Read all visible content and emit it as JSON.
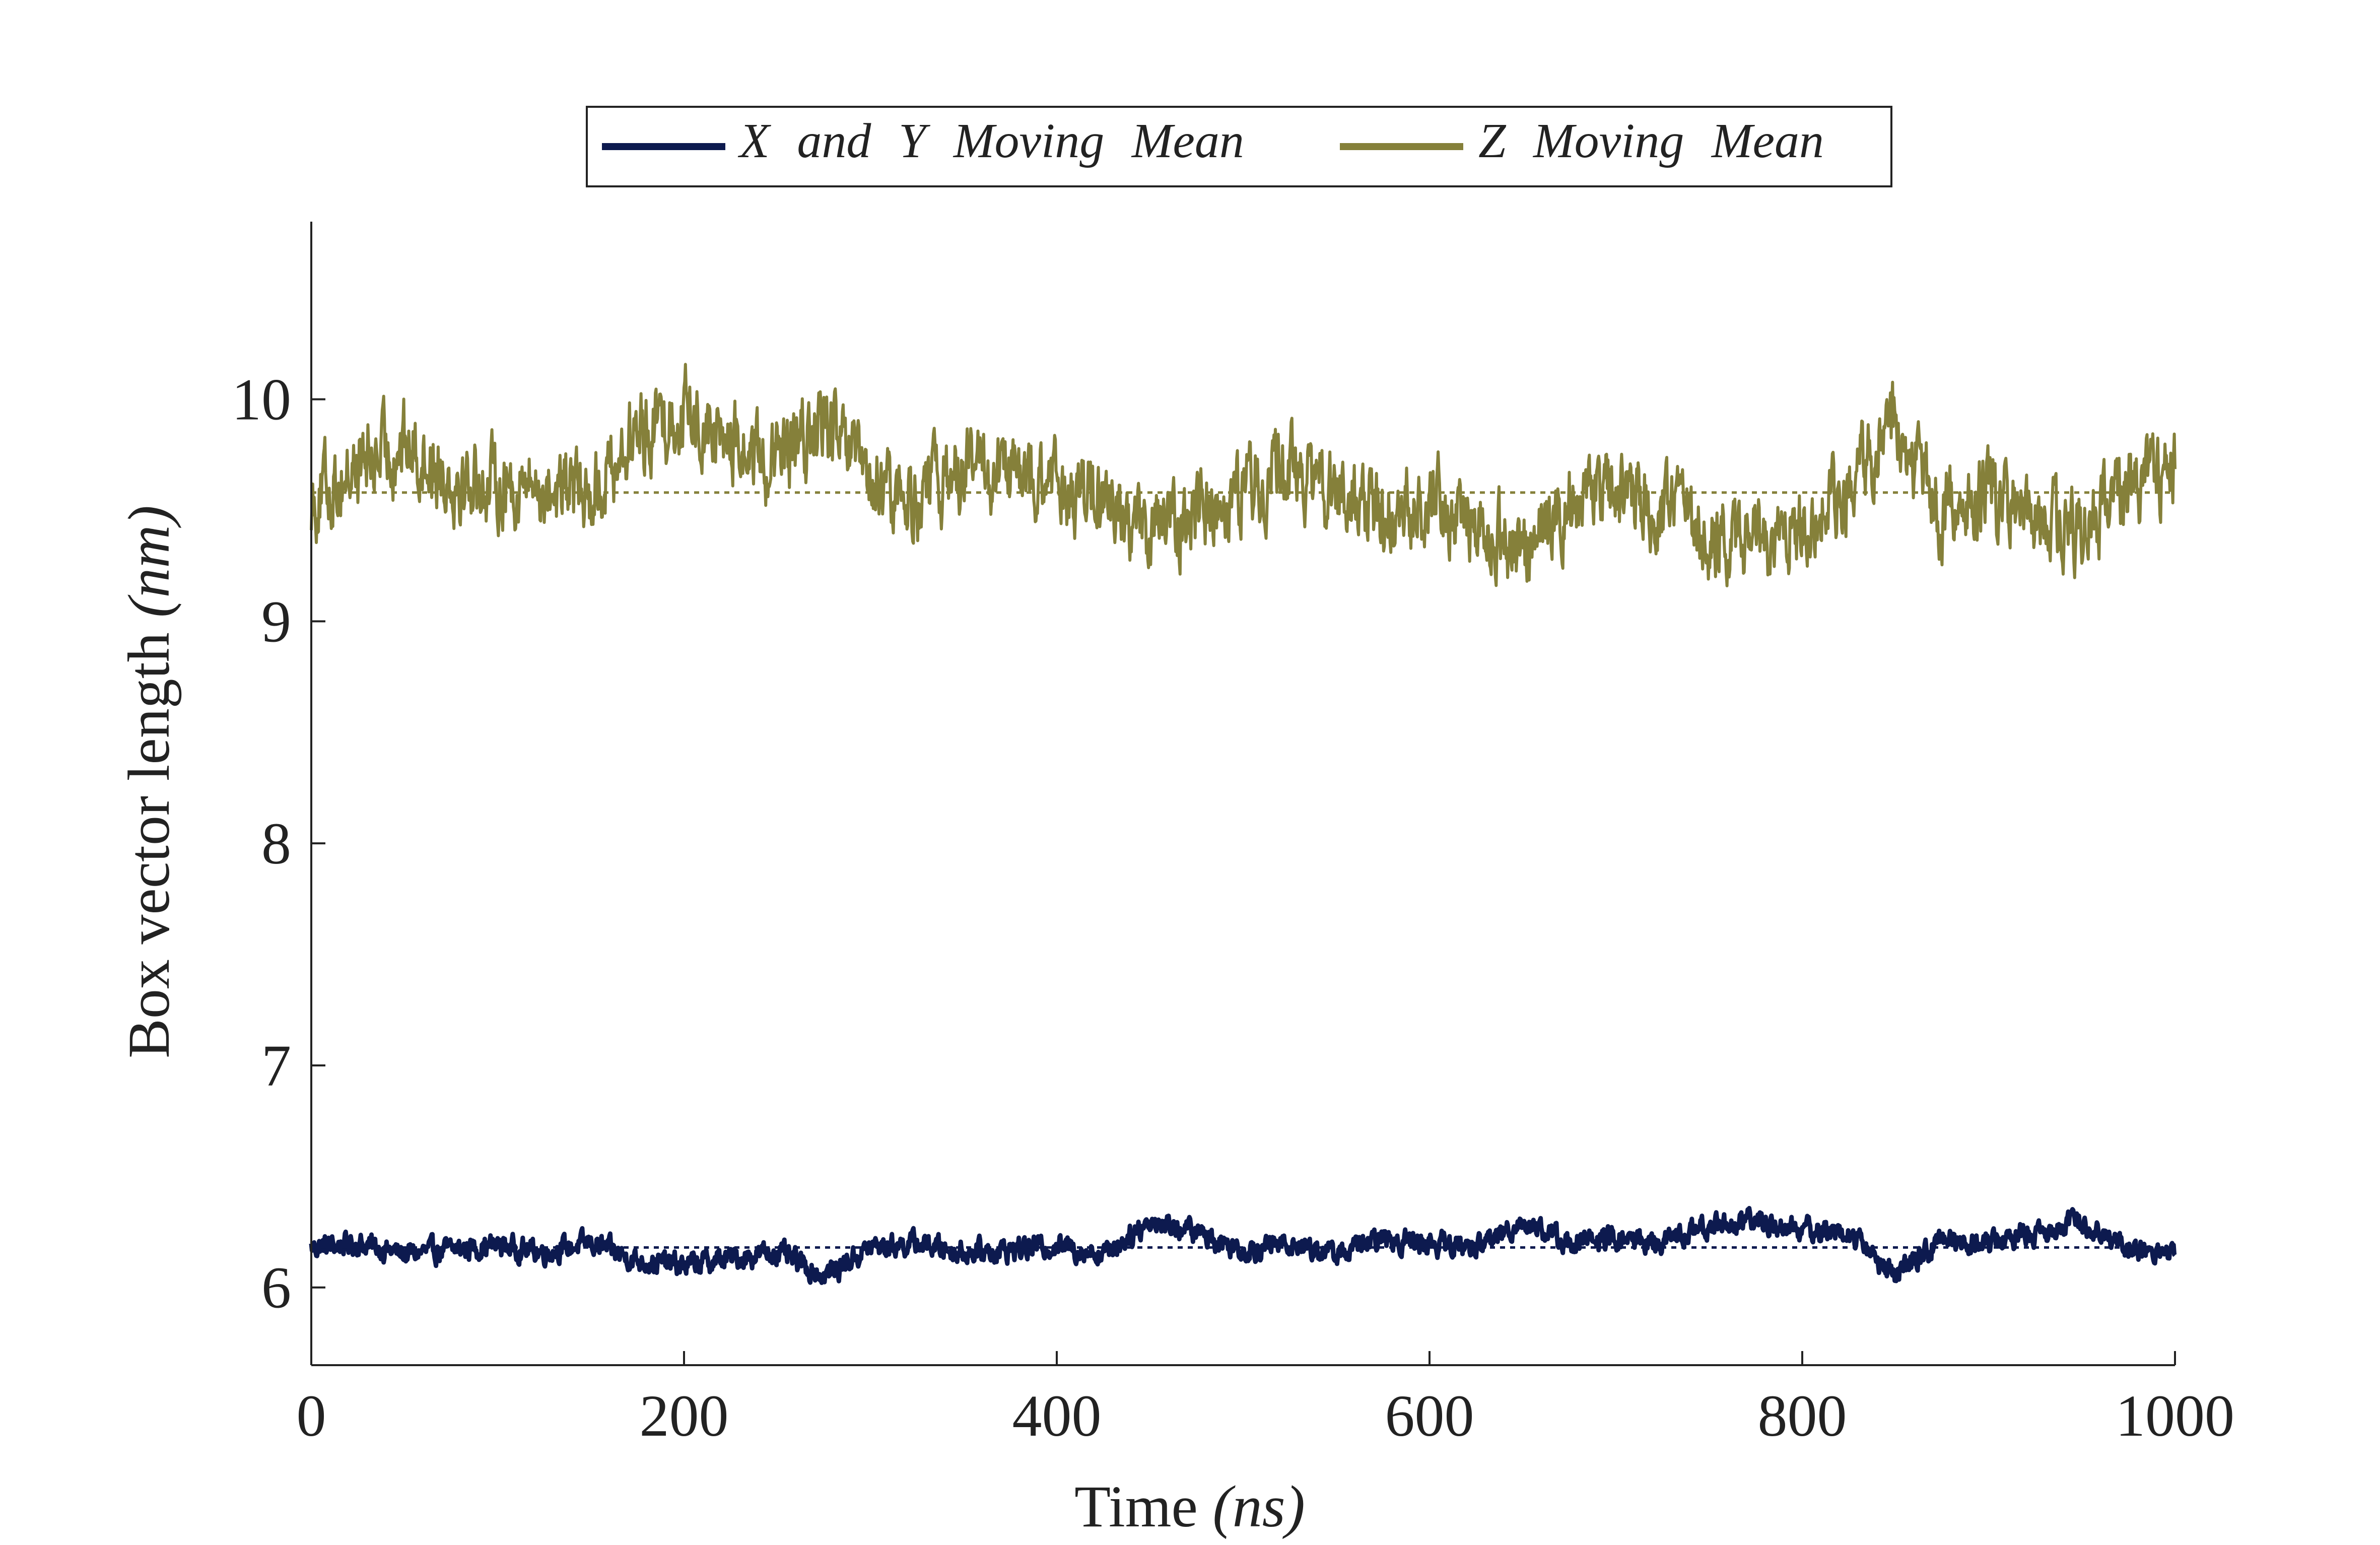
{
  "chart_data": {
    "type": "line",
    "xlabel_main": "Time",
    "xlabel_unit": "(ns)",
    "ylabel_main": "Box vector length",
    "ylabel_unit": "(nm)",
    "xlim": [
      0,
      1000
    ],
    "ylim": [
      5.65,
      10.8
    ],
    "xticks": [
      0,
      200,
      400,
      600,
      800,
      1000
    ],
    "yticks": [
      6,
      7,
      8,
      9,
      10
    ],
    "grid": false,
    "legend_position": "top-center",
    "series": [
      {
        "name": "X and Y Moving Mean",
        "color": "#0d1a4f",
        "mean": 6.18,
        "x": [
          0,
          25,
          50,
          75,
          100,
          125,
          150,
          175,
          200,
          225,
          250,
          275,
          300,
          325,
          350,
          375,
          400,
          425,
          450,
          475,
          500,
          525,
          550,
          575,
          600,
          625,
          650,
          675,
          700,
          725,
          750,
          775,
          800,
          825,
          850,
          875,
          900,
          925,
          950,
          975,
          1000
        ],
        "values": [
          6.18,
          6.2,
          6.15,
          6.17,
          6.19,
          6.16,
          6.2,
          6.12,
          6.1,
          6.13,
          6.16,
          6.05,
          6.18,
          6.2,
          6.16,
          6.17,
          6.19,
          6.15,
          6.3,
          6.25,
          6.17,
          6.2,
          6.15,
          6.22,
          6.2,
          6.18,
          6.3,
          6.2,
          6.22,
          6.2,
          6.28,
          6.3,
          6.26,
          6.25,
          6.05,
          6.22,
          6.2,
          6.25,
          6.3,
          6.18,
          6.15
        ]
      },
      {
        "name": "Z Moving Mean",
        "color": "#85803a",
        "mean": 9.58,
        "x": [
          0,
          25,
          50,
          75,
          100,
          125,
          150,
          175,
          200,
          225,
          250,
          275,
          300,
          325,
          350,
          375,
          400,
          425,
          450,
          475,
          500,
          525,
          550,
          575,
          600,
          625,
          650,
          675,
          700,
          725,
          750,
          775,
          800,
          825,
          850,
          875,
          900,
          925,
          950,
          975,
          1000
        ],
        "values": [
          9.55,
          9.7,
          9.8,
          9.65,
          9.62,
          9.6,
          9.58,
          9.85,
          9.95,
          9.8,
          9.7,
          9.9,
          9.6,
          9.55,
          9.7,
          9.65,
          9.6,
          9.55,
          9.4,
          9.5,
          9.6,
          9.7,
          9.55,
          9.5,
          9.55,
          9.45,
          9.3,
          9.55,
          9.6,
          9.5,
          9.4,
          9.35,
          9.45,
          9.6,
          9.9,
          9.5,
          9.55,
          9.45,
          9.4,
          9.6,
          9.7
        ]
      }
    ]
  }
}
